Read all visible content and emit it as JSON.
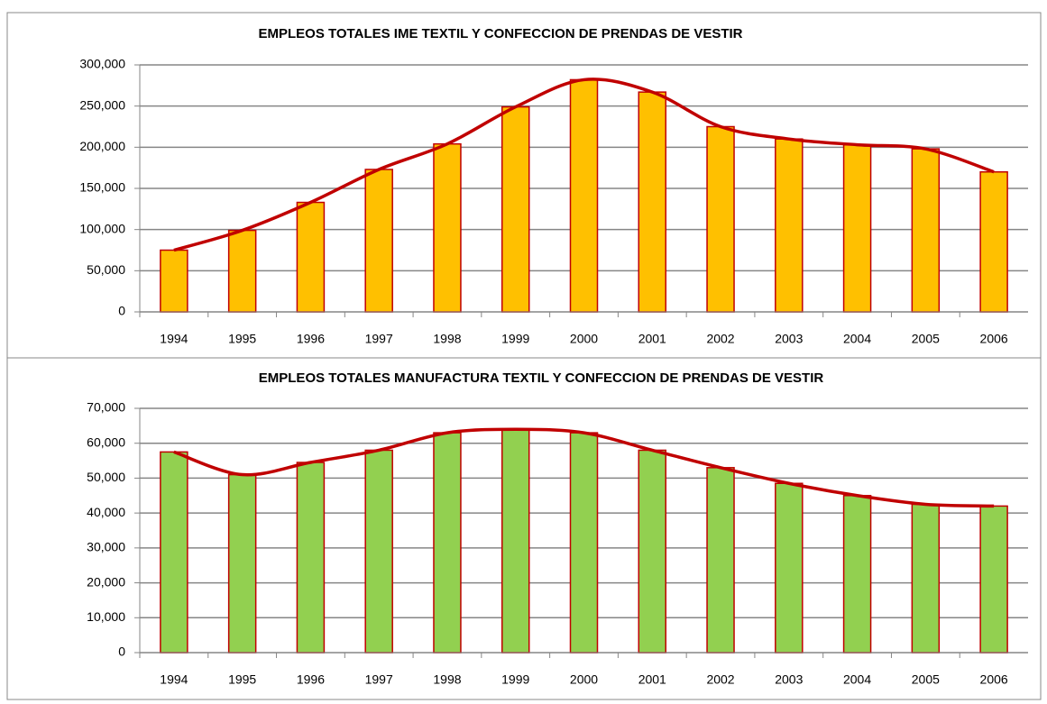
{
  "chart_data": [
    {
      "type": "bar",
      "title": "EMPLEOS TOTALES IME TEXTIL Y CONFECCION DE PRENDAS DE VESTIR",
      "categories": [
        "1994",
        "1995",
        "1996",
        "1997",
        "1998",
        "1999",
        "2000",
        "2001",
        "2002",
        "2003",
        "2004",
        "2005",
        "2006"
      ],
      "values": [
        75000,
        99000,
        133000,
        173000,
        204000,
        249000,
        282000,
        267000,
        225000,
        210000,
        203000,
        198000,
        170000
      ],
      "color": "#ffc000",
      "border_color": "#c00000",
      "trendline": true,
      "trendline_color": "#c00000",
      "ylim": [
        0,
        300000
      ],
      "yticks": [
        0,
        {
          "value": 50000,
          "label": "50,000"
        },
        {
          "value": 100000,
          "label": "100,000"
        },
        {
          "value": 150000,
          "label": "150,000"
        },
        {
          "value": 200000,
          "label": "200,000"
        },
        {
          "value": 250000,
          "label": "250,000"
        },
        {
          "value": 300000,
          "label": "300,000"
        }
      ],
      "grid": true
    },
    {
      "type": "bar",
      "title": "EMPLEOS TOTALES MANUFACTURA TEXTIL Y CONFECCION DE PRENDAS DE VESTIR",
      "categories": [
        "1994",
        "1995",
        "1996",
        "1997",
        "1998",
        "1999",
        "2000",
        "2001",
        "2002",
        "2003",
        "2004",
        "2005",
        "2006"
      ],
      "values": [
        57500,
        51000,
        54500,
        58000,
        63000,
        64000,
        63000,
        58000,
        53000,
        48500,
        45000,
        42500,
        42000
      ],
      "color": "#92d050",
      "border_color": "#c00000",
      "trendline": true,
      "trendline_color": "#c00000",
      "ylim": [
        0,
        70000
      ],
      "yticks": [
        0,
        {
          "value": 10000,
          "label": "10,000"
        },
        {
          "value": 20000,
          "label": "20,000"
        },
        {
          "value": 30000,
          "label": "30,000"
        },
        {
          "value": 40000,
          "label": "40,000"
        },
        {
          "value": 50000,
          "label": "50,000"
        },
        {
          "value": 60000,
          "label": "60,000"
        },
        {
          "value": 70000,
          "label": "70,000"
        }
      ],
      "grid": true
    }
  ]
}
